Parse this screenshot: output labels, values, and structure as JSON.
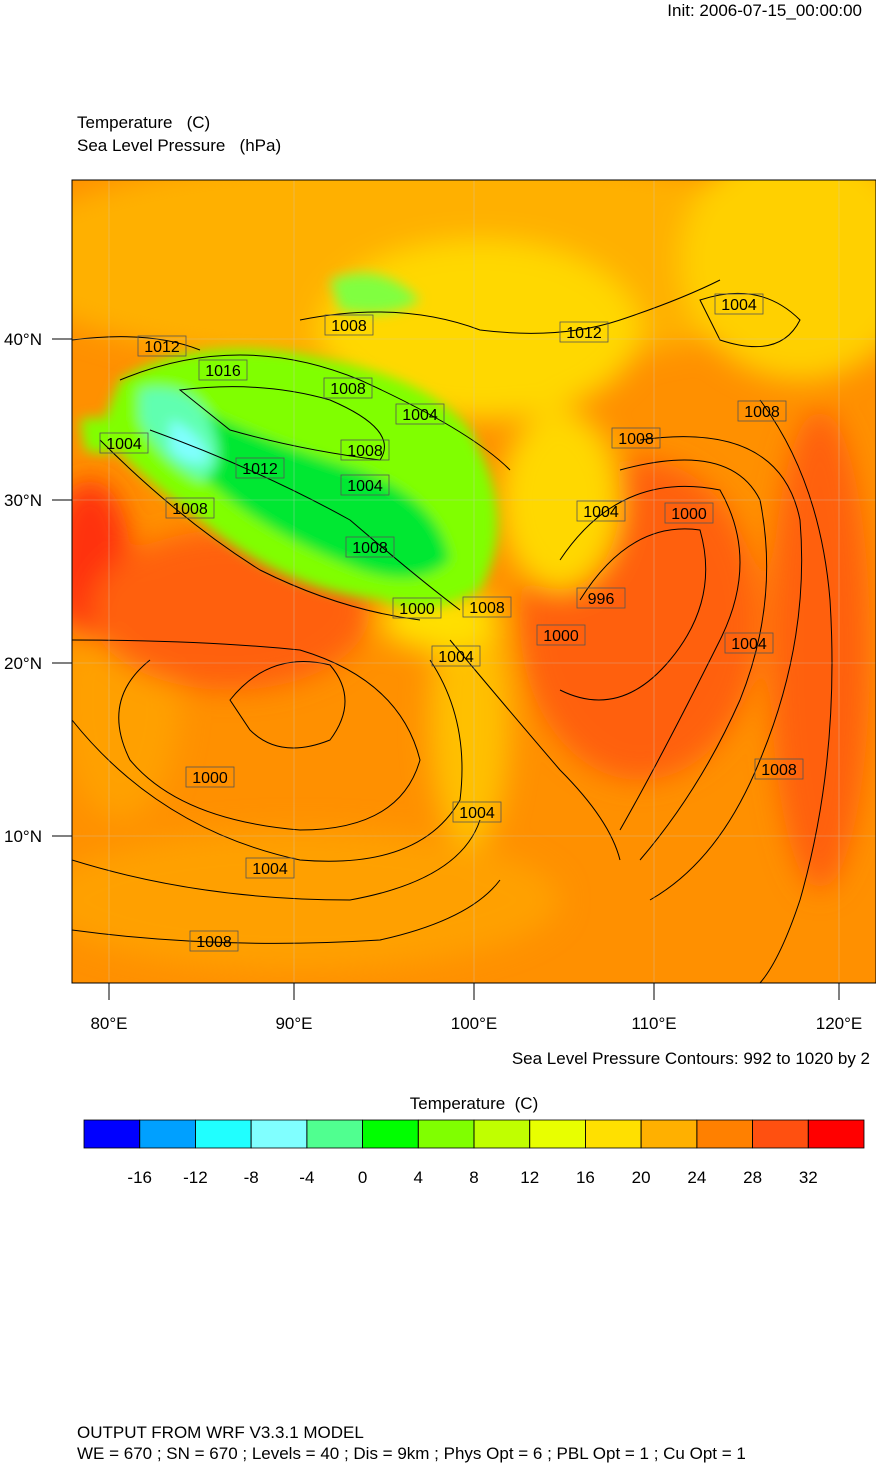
{
  "init": "Init: 2006-07-15_00:00:00",
  "title": {
    "line1": "Temperature   (C)",
    "line2": "Sea Level Pressure   (hPa)"
  },
  "map": {
    "lat_labels": [
      "40°N",
      "30°N",
      "20°N",
      "10°N"
    ],
    "lon_labels": [
      "80°E",
      "90°E",
      "100°E",
      "110°E",
      "120°E"
    ],
    "contour_labels": [
      "1012",
      "1016",
      "1008",
      "1008",
      "1004",
      "1012",
      "1004",
      "1008",
      "1008",
      "1004",
      "1008",
      "1012",
      "1004",
      "1008",
      "1004",
      "1000",
      "1008",
      "996",
      "1000",
      "1008",
      "1000",
      "1004",
      "1004",
      "1000",
      "1008",
      "1004",
      "1004",
      "1008"
    ]
  },
  "contour_note": "Sea Level Pressure Contours: 992 to 1020 by 2",
  "colorbar": {
    "title": "Temperature  (C)",
    "colors": [
      "#0000ff",
      "#00a0ff",
      "#20ffff",
      "#80ffff",
      "#50ff90",
      "#00ff00",
      "#80ff00",
      "#c0ff00",
      "#e8ff00",
      "#ffe000",
      "#ffb000",
      "#ff8000",
      "#ff5010",
      "#ff0000"
    ],
    "ticks": [
      -16,
      -12,
      -8,
      -4,
      0,
      4,
      8,
      12,
      16,
      20,
      24,
      28,
      32
    ]
  },
  "footer": {
    "line1": "OUTPUT FROM WRF V3.3.1 MODEL",
    "line2": "WE = 670 ; SN = 670 ; Levels = 40 ; Dis = 9km ; Phys Opt = 6 ; PBL Opt = 1 ; Cu Opt = 1"
  }
}
